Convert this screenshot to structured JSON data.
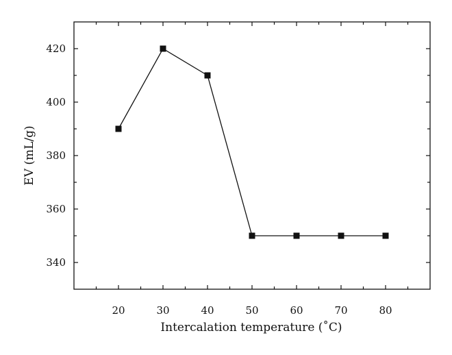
{
  "chart_data": {
    "type": "line",
    "title": "",
    "xlabel": "Intercalation temperature (˚C)",
    "ylabel": "EV (mL/g)",
    "xlim": [
      10,
      90
    ],
    "ylim": [
      330,
      430
    ],
    "xticks": [
      20,
      30,
      40,
      50,
      60,
      70,
      80
    ],
    "yticks": [
      340,
      360,
      380,
      400,
      420
    ],
    "grid": false,
    "legend": "none",
    "marker": "square",
    "line_color": "#111111",
    "series": [
      {
        "x": [
          20,
          30,
          40,
          50,
          60,
          70,
          80
        ],
        "y": [
          390,
          420,
          410,
          350,
          350,
          350,
          350
        ]
      }
    ]
  }
}
